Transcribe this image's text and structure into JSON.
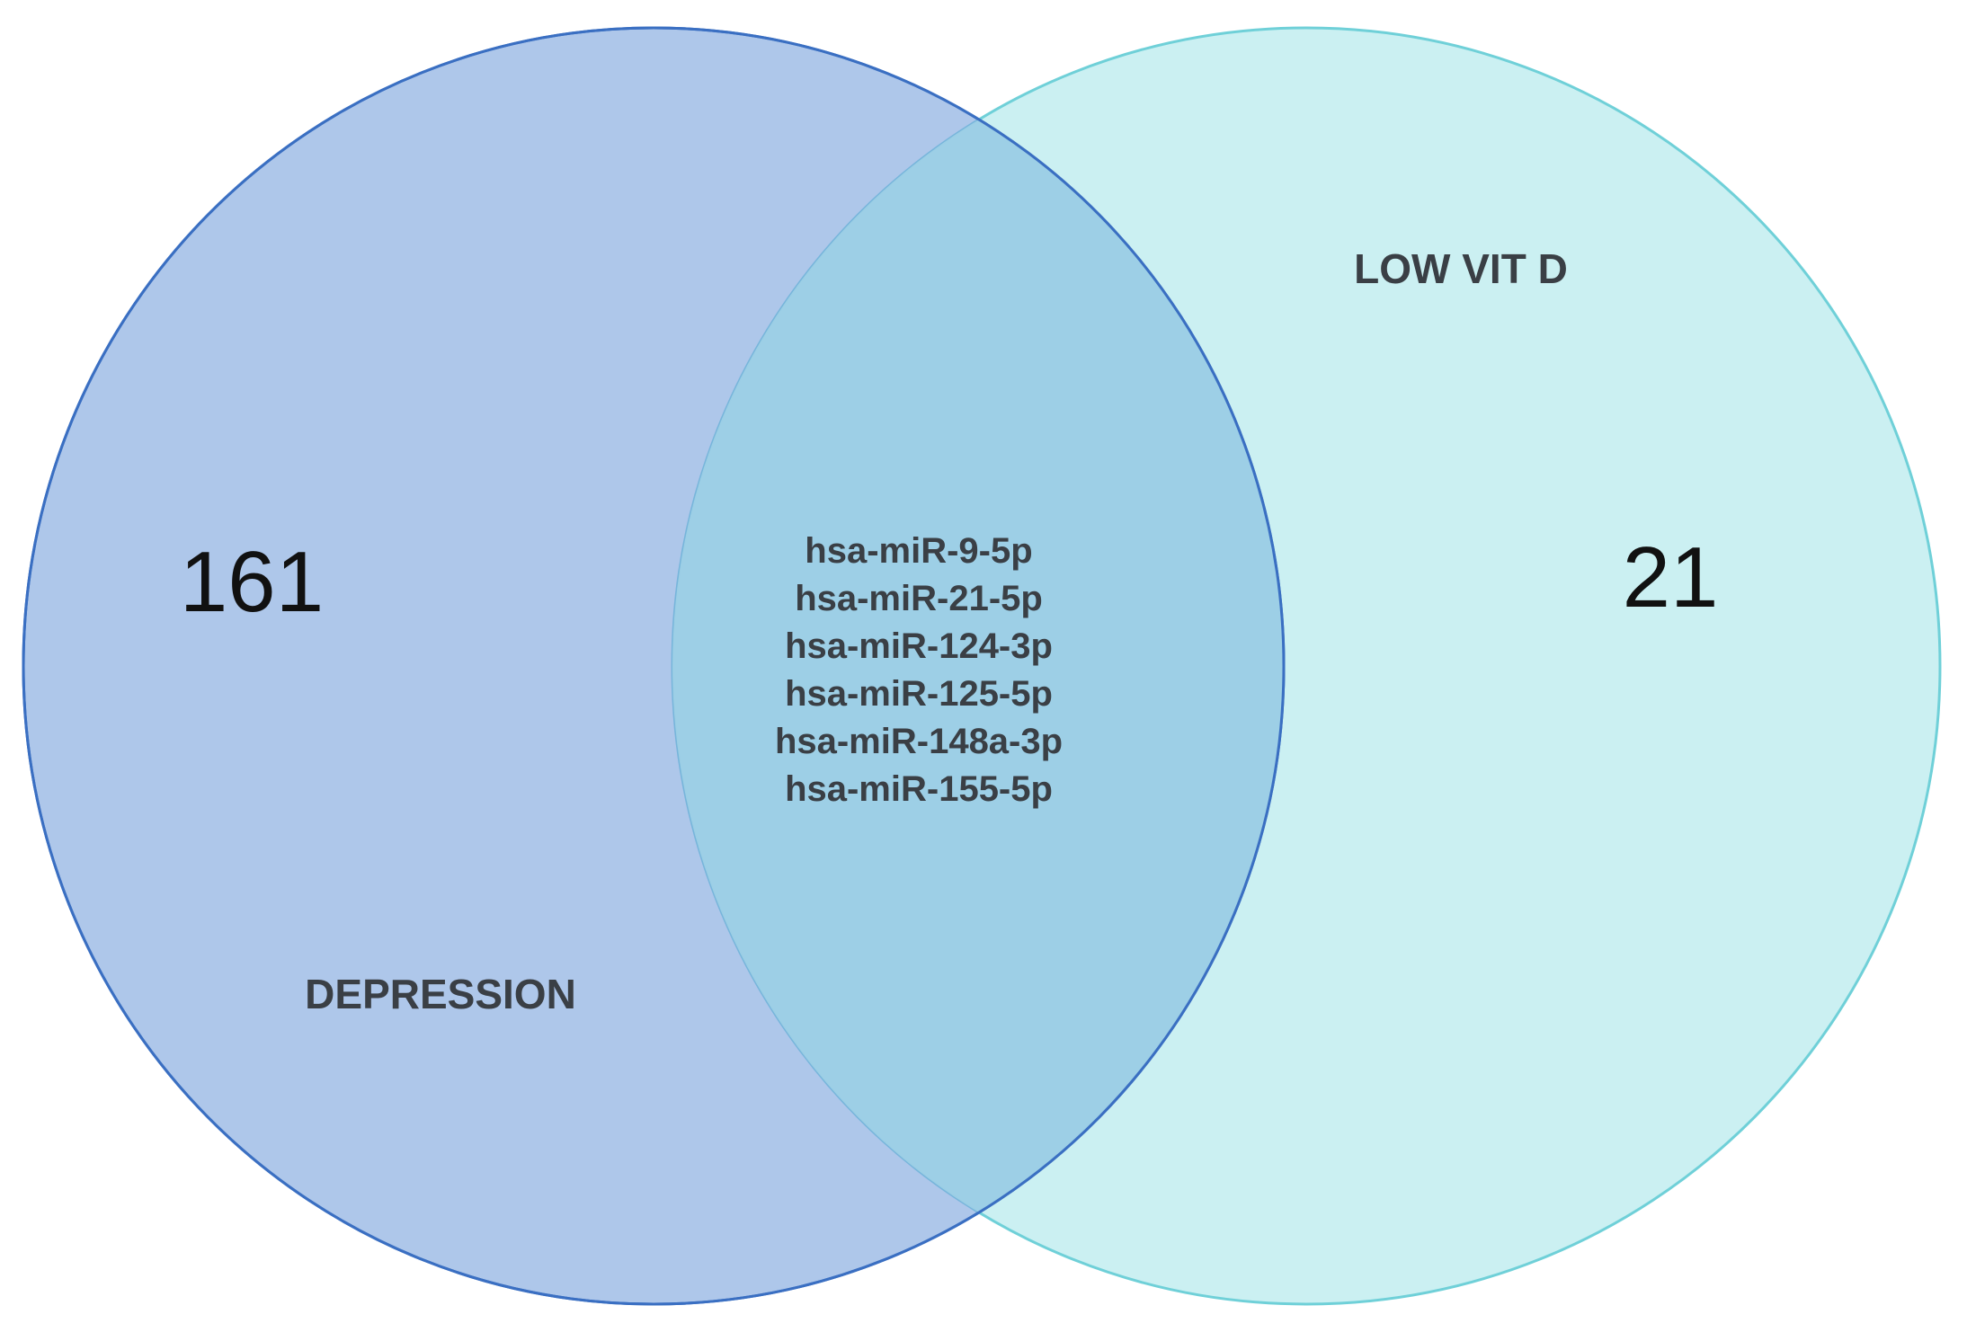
{
  "diagram": {
    "type": "venn",
    "colors": {
      "set_a_fill": "#7ca4dd",
      "set_a_stroke": "#3a6fc2",
      "set_b_fill": "#a8e6ea",
      "set_b_stroke": "#6fd0d8",
      "overlap_fill": "#9dd0e6",
      "set_label_color": "#3a3f45",
      "count_color": "#111111",
      "overlap_text_color": "#3a3f45"
    },
    "sets": [
      {
        "label": "DEPRESSION",
        "exclusive_count": "161"
      },
      {
        "label": "LOW VIT D",
        "exclusive_count": "21"
      }
    ],
    "intersection": {
      "items": [
        "hsa-miR-9-5p",
        "hsa-miR-21-5p",
        "hsa-miR-124-3p",
        "hsa-miR-125-5p",
        "hsa-miR-148a-3p",
        "hsa-miR-155-5p"
      ]
    }
  }
}
